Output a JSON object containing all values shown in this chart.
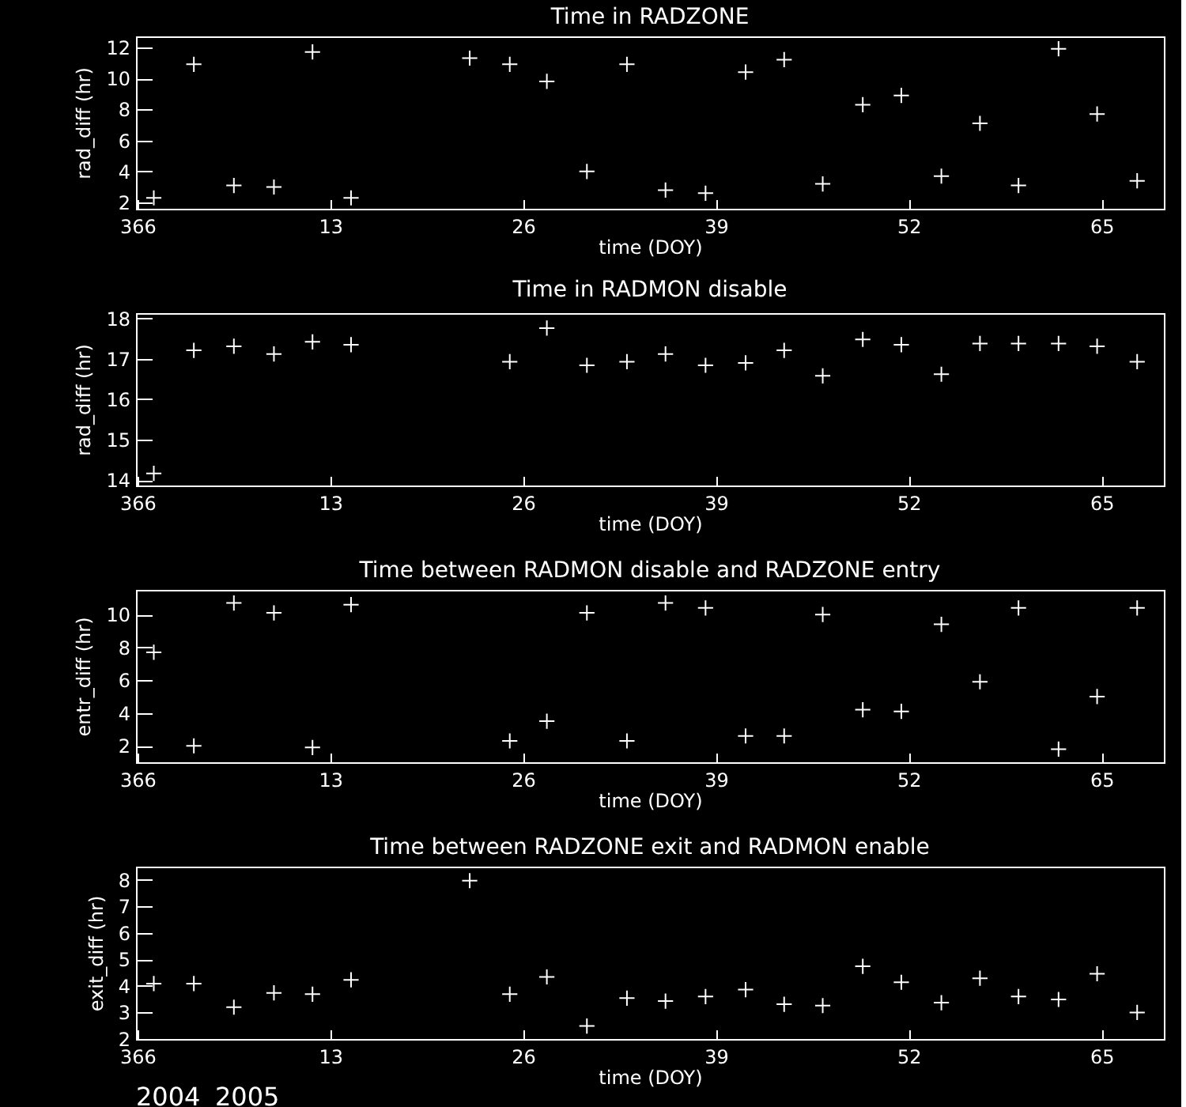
{
  "chart_data": [
    {
      "type": "scatter",
      "title": "Time in RADZONE",
      "xlabel": "time (DOY)",
      "ylabel": "rad_diff (hr)",
      "color": "#ffffff",
      "marker": "cross",
      "x": [
        "2005-01-01T02:24",
        "2005-01-03T19:12",
        "2005-01-06T12:00",
        "2005-01-09T04:48",
        "2005-01-11T19:12",
        "2005-01-14T09:36",
        "2005-01-22T09:36",
        "2005-01-25T02:24",
        "2005-01-27T14:24",
        "2005-01-30T07:12",
        "2005-02-02T00:00",
        "2005-02-04T14:24",
        "2005-02-07T07:12",
        "2005-02-10T00:00",
        "2005-02-12T14:24",
        "2005-02-15T04:48",
        "2005-02-17T21:36",
        "2005-02-20T12:00",
        "2005-02-23T04:48",
        "2005-02-25T19:12",
        "2005-02-28T09:36",
        "2005-03-03T02:24",
        "2005-03-05T16:48",
        "2005-03-08T09:36"
      ],
      "values": [
        2.3,
        10.9,
        3.1,
        3.0,
        11.7,
        2.3,
        11.3,
        10.9,
        9.8,
        4.0,
        10.9,
        2.8,
        2.6,
        10.4,
        11.2,
        3.2,
        8.3,
        8.9,
        3.7,
        7.1,
        3.1,
        11.9,
        7.7,
        3.4
      ],
      "xlim": [
        "2004-12-30T21:36",
        "2005-03-10T04:48"
      ],
      "xticks": [
        {
          "value": "2004-12-31",
          "label": "366"
        },
        {
          "value": "2005-01-13",
          "label": "13"
        },
        {
          "value": "2005-01-26",
          "label": "26"
        },
        {
          "value": "2005-02-08",
          "label": "39"
        },
        {
          "value": "2005-02-21",
          "label": "52"
        },
        {
          "value": "2005-03-06",
          "label": "65"
        }
      ],
      "ylim": [
        1.6,
        12.7
      ],
      "yticks": [
        2,
        4,
        6,
        8,
        10,
        12
      ]
    },
    {
      "type": "scatter",
      "title": "Time in RADMON disable",
      "xlabel": "time (DOY)",
      "ylabel": "rad_diff (hr)",
      "color": "#ffffff",
      "marker": "cross",
      "x": [
        "2005-01-01T02:24",
        "2005-01-03T19:12",
        "2005-01-06T12:00",
        "2005-01-09T04:48",
        "2005-01-11T19:12",
        "2005-01-14T09:36",
        "2005-01-25T02:24",
        "2005-01-27T14:24",
        "2005-01-30T07:12",
        "2005-02-02T00:00",
        "2005-02-04T14:24",
        "2005-02-07T07:12",
        "2005-02-10T00:00",
        "2005-02-12T14:24",
        "2005-02-15T04:48",
        "2005-02-17T21:36",
        "2005-02-20T12:00",
        "2005-02-23T04:48",
        "2005-02-25T19:12",
        "2005-02-28T09:36",
        "2005-03-03T02:24",
        "2005-03-05T16:48",
        "2005-03-08T09:36"
      ],
      "values": [
        14.17,
        17.21,
        17.31,
        17.12,
        17.42,
        17.35,
        16.93,
        17.76,
        16.84,
        16.93,
        17.12,
        16.84,
        16.9,
        17.21,
        16.58,
        17.48,
        17.35,
        16.62,
        17.38,
        17.38,
        17.38,
        17.31,
        16.93
      ],
      "xlim": [
        "2004-12-30T21:36",
        "2005-03-10T04:48"
      ],
      "xticks": [
        {
          "value": "2004-12-31",
          "label": "366"
        },
        {
          "value": "2005-01-13",
          "label": "13"
        },
        {
          "value": "2005-01-26",
          "label": "26"
        },
        {
          "value": "2005-02-08",
          "label": "39"
        },
        {
          "value": "2005-02-21",
          "label": "52"
        },
        {
          "value": "2005-03-06",
          "label": "65"
        }
      ],
      "ylim": [
        13.87,
        18.13
      ],
      "yticks": [
        14,
        15,
        16,
        17,
        18
      ]
    },
    {
      "type": "scatter",
      "title": "Time between RADMON disable and RADZONE entry",
      "xlabel": "time (DOY)",
      "ylabel": "entr_diff (hr)",
      "color": "#ffffff",
      "marker": "cross",
      "x": [
        "2005-01-01T02:24",
        "2005-01-03T19:12",
        "2005-01-06T12:00",
        "2005-01-09T04:48",
        "2005-01-11T19:12",
        "2005-01-14T09:36",
        "2005-01-25T02:24",
        "2005-01-27T14:24",
        "2005-01-30T07:12",
        "2005-02-02T00:00",
        "2005-02-04T14:24",
        "2005-02-07T07:12",
        "2005-02-10T00:00",
        "2005-02-12T14:24",
        "2005-02-15T04:48",
        "2005-02-17T21:36",
        "2005-02-20T12:00",
        "2005-02-23T04:48",
        "2005-02-25T19:12",
        "2005-02-28T09:36",
        "2005-03-03T02:24",
        "2005-03-05T16:48",
        "2005-03-08T09:36"
      ],
      "values": [
        7.7,
        2.0,
        10.7,
        10.1,
        1.9,
        10.6,
        2.3,
        3.5,
        10.1,
        2.3,
        10.7,
        10.4,
        2.6,
        2.6,
        10.0,
        4.2,
        4.1,
        9.4,
        5.9,
        10.4,
        1.8,
        5.0,
        10.4
      ],
      "xlim": [
        "2004-12-30T21:36",
        "2005-03-10T04:48"
      ],
      "xticks": [
        {
          "value": "2004-12-31",
          "label": "366"
        },
        {
          "value": "2005-01-13",
          "label": "13"
        },
        {
          "value": "2005-01-26",
          "label": "26"
        },
        {
          "value": "2005-02-08",
          "label": "39"
        },
        {
          "value": "2005-02-21",
          "label": "52"
        },
        {
          "value": "2005-03-06",
          "label": "65"
        }
      ],
      "ylim": [
        1.0,
        11.5
      ],
      "yticks": [
        2,
        4,
        6,
        8,
        10
      ]
    },
    {
      "type": "scatter",
      "title": "Time between RADZONE exit and RADMON enable",
      "xlabel": "time (DOY)",
      "ylabel": "exit_diff (hr)",
      "color": "#ffffff",
      "marker": "cross",
      "x": [
        "2005-01-01T02:24",
        "2005-01-03T19:12",
        "2005-01-06T12:00",
        "2005-01-09T04:48",
        "2005-01-11T19:12",
        "2005-01-14T09:36",
        "2005-01-22T09:36",
        "2005-01-25T02:24",
        "2005-01-27T14:24",
        "2005-01-30T07:12",
        "2005-02-02T00:00",
        "2005-02-04T14:24",
        "2005-02-07T07:12",
        "2005-02-10T00:00",
        "2005-02-12T14:24",
        "2005-02-15T04:48",
        "2005-02-17T21:36",
        "2005-02-20T12:00",
        "2005-02-23T04:48",
        "2005-02-25T19:12",
        "2005-02-28T09:36",
        "2005-03-03T02:24",
        "2005-03-05T16:48",
        "2005-03-08T09:36"
      ],
      "values": [
        4.09,
        4.09,
        3.2,
        3.74,
        3.69,
        4.23,
        7.97,
        3.69,
        4.34,
        2.49,
        3.54,
        3.43,
        3.6,
        3.86,
        3.31,
        3.26,
        4.74,
        4.14,
        3.37,
        4.29,
        3.6,
        3.49,
        4.46,
        3.0
      ],
      "xlim": [
        "2004-12-30T21:36",
        "2005-03-10T04:48"
      ],
      "xticks": [
        {
          "value": "2004-12-31",
          "label": "366"
        },
        {
          "value": "2005-01-13",
          "label": "13"
        },
        {
          "value": "2005-01-26",
          "label": "26"
        },
        {
          "value": "2005-02-08",
          "label": "39"
        },
        {
          "value": "2005-02-21",
          "label": "52"
        },
        {
          "value": "2005-03-06",
          "label": "65"
        }
      ],
      "ylim": [
        2,
        8.5
      ],
      "yticks": [
        2,
        3,
        4,
        5,
        6,
        7,
        8
      ],
      "annotations": [
        "2004",
        "2005"
      ]
    }
  ]
}
